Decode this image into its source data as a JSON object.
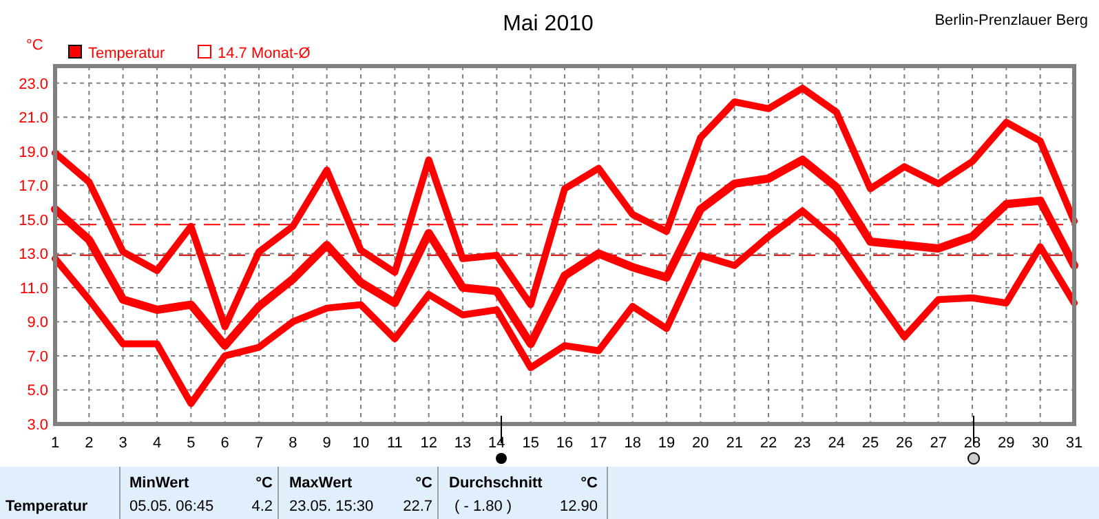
{
  "chart_data": {
    "type": "line",
    "title": "Mai 2010",
    "subtitle": "Berlin-Prenzlauer Berg",
    "ylabel": "°C",
    "x": [
      1,
      2,
      3,
      4,
      5,
      6,
      7,
      8,
      9,
      10,
      11,
      12,
      13,
      14,
      15,
      16,
      17,
      18,
      19,
      20,
      21,
      22,
      23,
      24,
      25,
      26,
      27,
      28,
      29,
      30,
      31
    ],
    "series": [
      {
        "color": "#ff0000",
        "values": [
          18.9,
          17.2,
          13.1,
          12.0,
          14.6,
          8.7,
          13.1,
          14.6,
          17.9,
          13.2,
          11.9,
          18.5,
          12.7,
          12.9,
          10.0,
          16.8,
          18.0,
          15.3,
          14.3,
          19.8,
          21.9,
          21.5,
          22.7,
          21.3,
          16.8,
          18.1,
          17.1,
          18.4,
          20.7,
          19.6,
          14.9
        ]
      },
      {
        "name": "Temperatur",
        "color": "#ff0000",
        "values": [
          15.6,
          13.8,
          10.3,
          9.7,
          10.0,
          7.6,
          9.9,
          11.5,
          13.5,
          11.3,
          10.1,
          14.2,
          11.0,
          10.8,
          7.7,
          11.7,
          13.0,
          12.2,
          11.6,
          15.6,
          17.1,
          17.4,
          18.5,
          16.9,
          13.7,
          13.5,
          13.3,
          14.0,
          15.9,
          16.1,
          12.3
        ]
      },
      {
        "color": "#ff0000",
        "values": [
          12.7,
          10.3,
          7.7,
          7.7,
          4.2,
          7.0,
          7.5,
          9.0,
          9.8,
          10.0,
          8.0,
          10.6,
          9.4,
          9.7,
          6.3,
          7.6,
          7.3,
          9.9,
          8.6,
          12.9,
          12.3,
          14.0,
          15.5,
          13.8,
          10.9,
          8.1,
          10.3,
          10.4,
          10.1,
          13.4,
          10.1
        ]
      }
    ],
    "xlim": [
      1,
      31
    ],
    "xticks": [
      1,
      2,
      3,
      4,
      5,
      6,
      7,
      8,
      9,
      10,
      11,
      12,
      13,
      14,
      15,
      16,
      17,
      18,
      19,
      20,
      21,
      22,
      23,
      24,
      25,
      26,
      27,
      28,
      29,
      30,
      31
    ],
    "ylim": [
      3,
      24
    ],
    "yticks": [
      {
        "value": 3,
        "label": "3.0"
      },
      {
        "value": 5,
        "label": "5.0"
      },
      {
        "value": 7,
        "label": "7.0"
      },
      {
        "value": 9,
        "label": "9.0"
      },
      {
        "value": 11,
        "label": "11.0"
      },
      {
        "value": 13,
        "label": "13.0"
      },
      {
        "value": 15,
        "label": "15.0"
      },
      {
        "value": 17,
        "label": "17.0"
      },
      {
        "value": 19,
        "label": "19.0"
      },
      {
        "value": 21,
        "label": "21.0"
      },
      {
        "value": 23,
        "label": "23.0"
      }
    ],
    "ref_lines": [
      {
        "axis": "y",
        "value": 14.7,
        "label": "14.7 Monat-Ø",
        "color": "#ff0000",
        "line_style": "dashed"
      },
      {
        "axis": "y",
        "value": 12.9,
        "color": "#cc0000",
        "line_style": "dashed"
      }
    ],
    "grid": true,
    "legend": "top left",
    "marker": "none",
    "line_style": "solid",
    "annotations": [
      "Temperatur",
      "MinWert",
      "°C",
      "05.05.  06:45",
      "4.2",
      "MaxWert",
      "°C",
      "23.05.  15:30",
      "22.7",
      "Durchschnitt",
      "°C",
      "( - 1.80 )",
      "12.90"
    ]
  }
}
